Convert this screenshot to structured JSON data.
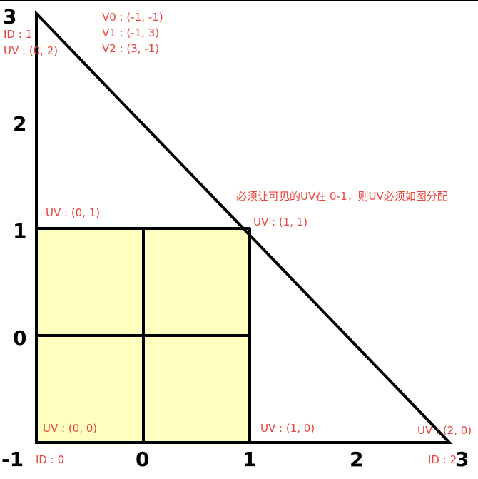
{
  "colors": {
    "line": "#000000",
    "fill": "#ffffc0",
    "label": "#e8433a"
  },
  "axis_labels": {
    "x": [
      "-1",
      "0",
      "1",
      "2",
      "3"
    ],
    "y": [
      "3",
      "2",
      "1",
      "0",
      "-1"
    ]
  },
  "vertex_info": {
    "v0": "V0 : (-1, -1)",
    "v1": "V1 : (-1, 3)",
    "v2": "V2 : (3, -1)"
  },
  "id_labels": {
    "top": "ID : 1",
    "bottom_left": "ID : 0",
    "bottom_right": "ID : 2"
  },
  "uv_labels": {
    "top": "UV : (0, 2)",
    "square_top_left": "UV : (0, 1)",
    "square_top_right": "UV : (1, 1)",
    "bottom_left": "UV : (0, 0)",
    "square_bottom_right": "UV : (1, 0)",
    "bottom_right": "UV : (2, 0)"
  },
  "note": "必须让可见的UV在 0-1，则UV必须如图分配"
}
